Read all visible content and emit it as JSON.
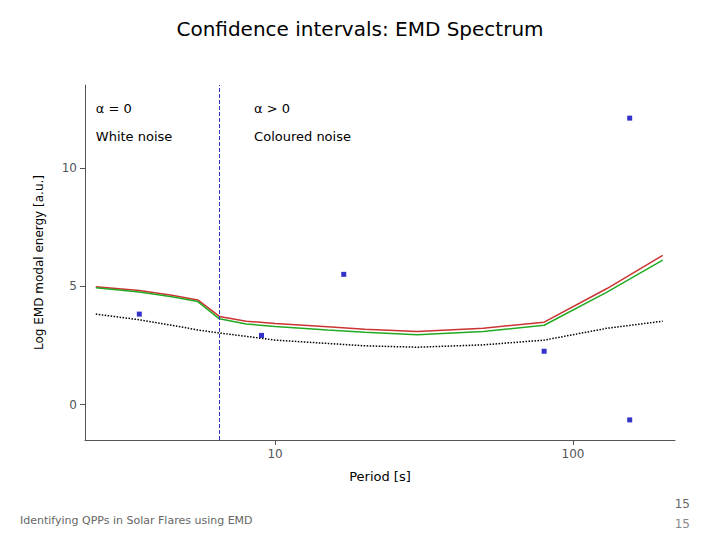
{
  "chart_data": {
    "type": "line",
    "title": "Confidence intervals: EMD Spectrum",
    "subtitle": "Identifying QPPs in Solar Flares using EMD",
    "page_numbers": [
      "15",
      "15"
    ],
    "xlabel": "Period [s]",
    "ylabel": "Log EMD modal energy [a.u.]",
    "log": "x",
    "xlim": [
      2.3,
      220
    ],
    "xticks": [
      10,
      100
    ],
    "ylim": [
      -1.5,
      13.5
    ],
    "yticks": [
      0,
      5,
      10
    ],
    "grid": false,
    "series": [
      {
        "type": "line",
        "color": "#cc3333",
        "line_style": "solid",
        "x": [
          2.5,
          3.5,
          4.5,
          5.5,
          6.5,
          8,
          10,
          15,
          20,
          30,
          50,
          80,
          130,
          200
        ],
        "values": [
          4.98,
          4.82,
          4.62,
          4.42,
          3.72,
          3.52,
          3.42,
          3.28,
          3.18,
          3.08,
          3.22,
          3.48,
          4.9,
          6.3
        ]
      },
      {
        "type": "line",
        "color": "#22aa22",
        "line_style": "solid",
        "x": [
          2.5,
          3.5,
          4.5,
          5.5,
          6.5,
          8,
          10,
          15,
          20,
          30,
          50,
          80,
          130,
          200
        ],
        "values": [
          4.93,
          4.75,
          4.55,
          4.35,
          3.62,
          3.4,
          3.3,
          3.15,
          3.05,
          2.95,
          3.08,
          3.35,
          4.75,
          6.1
        ]
      },
      {
        "type": "line",
        "color": "#000000",
        "line_style": "dotted",
        "x": [
          2.5,
          3.5,
          4.5,
          5.5,
          6.5,
          8,
          10,
          15,
          20,
          30,
          50,
          80,
          130,
          200
        ],
        "values": [
          3.82,
          3.58,
          3.35,
          3.15,
          3.02,
          2.88,
          2.72,
          2.58,
          2.48,
          2.42,
          2.52,
          2.72,
          3.22,
          3.52
        ]
      },
      {
        "type": "scatter",
        "color": "#0000bb",
        "marker": "square",
        "x": [
          3.5,
          9.0,
          17,
          80,
          155
        ],
        "values": [
          3.82,
          2.92,
          5.5,
          2.25,
          -0.65
        ]
      },
      {
        "type": "scatter",
        "color": "#0000bb",
        "marker": "square",
        "x": [
          155
        ],
        "values": [
          12.1
        ]
      }
    ],
    "vlines": [
      {
        "x": 6.5,
        "color": "#3333cc",
        "line_style": "dashed"
      }
    ],
    "annotations": [
      {
        "text": "α = 0",
        "x": 2.5,
        "y": 12.8
      },
      {
        "text": "White noise",
        "x": 2.5,
        "y": 11.6
      },
      {
        "text": "α > 0",
        "x": 8.5,
        "y": 12.8
      },
      {
        "text": "Coloured noise",
        "x": 8.5,
        "y": 11.6
      }
    ]
  }
}
